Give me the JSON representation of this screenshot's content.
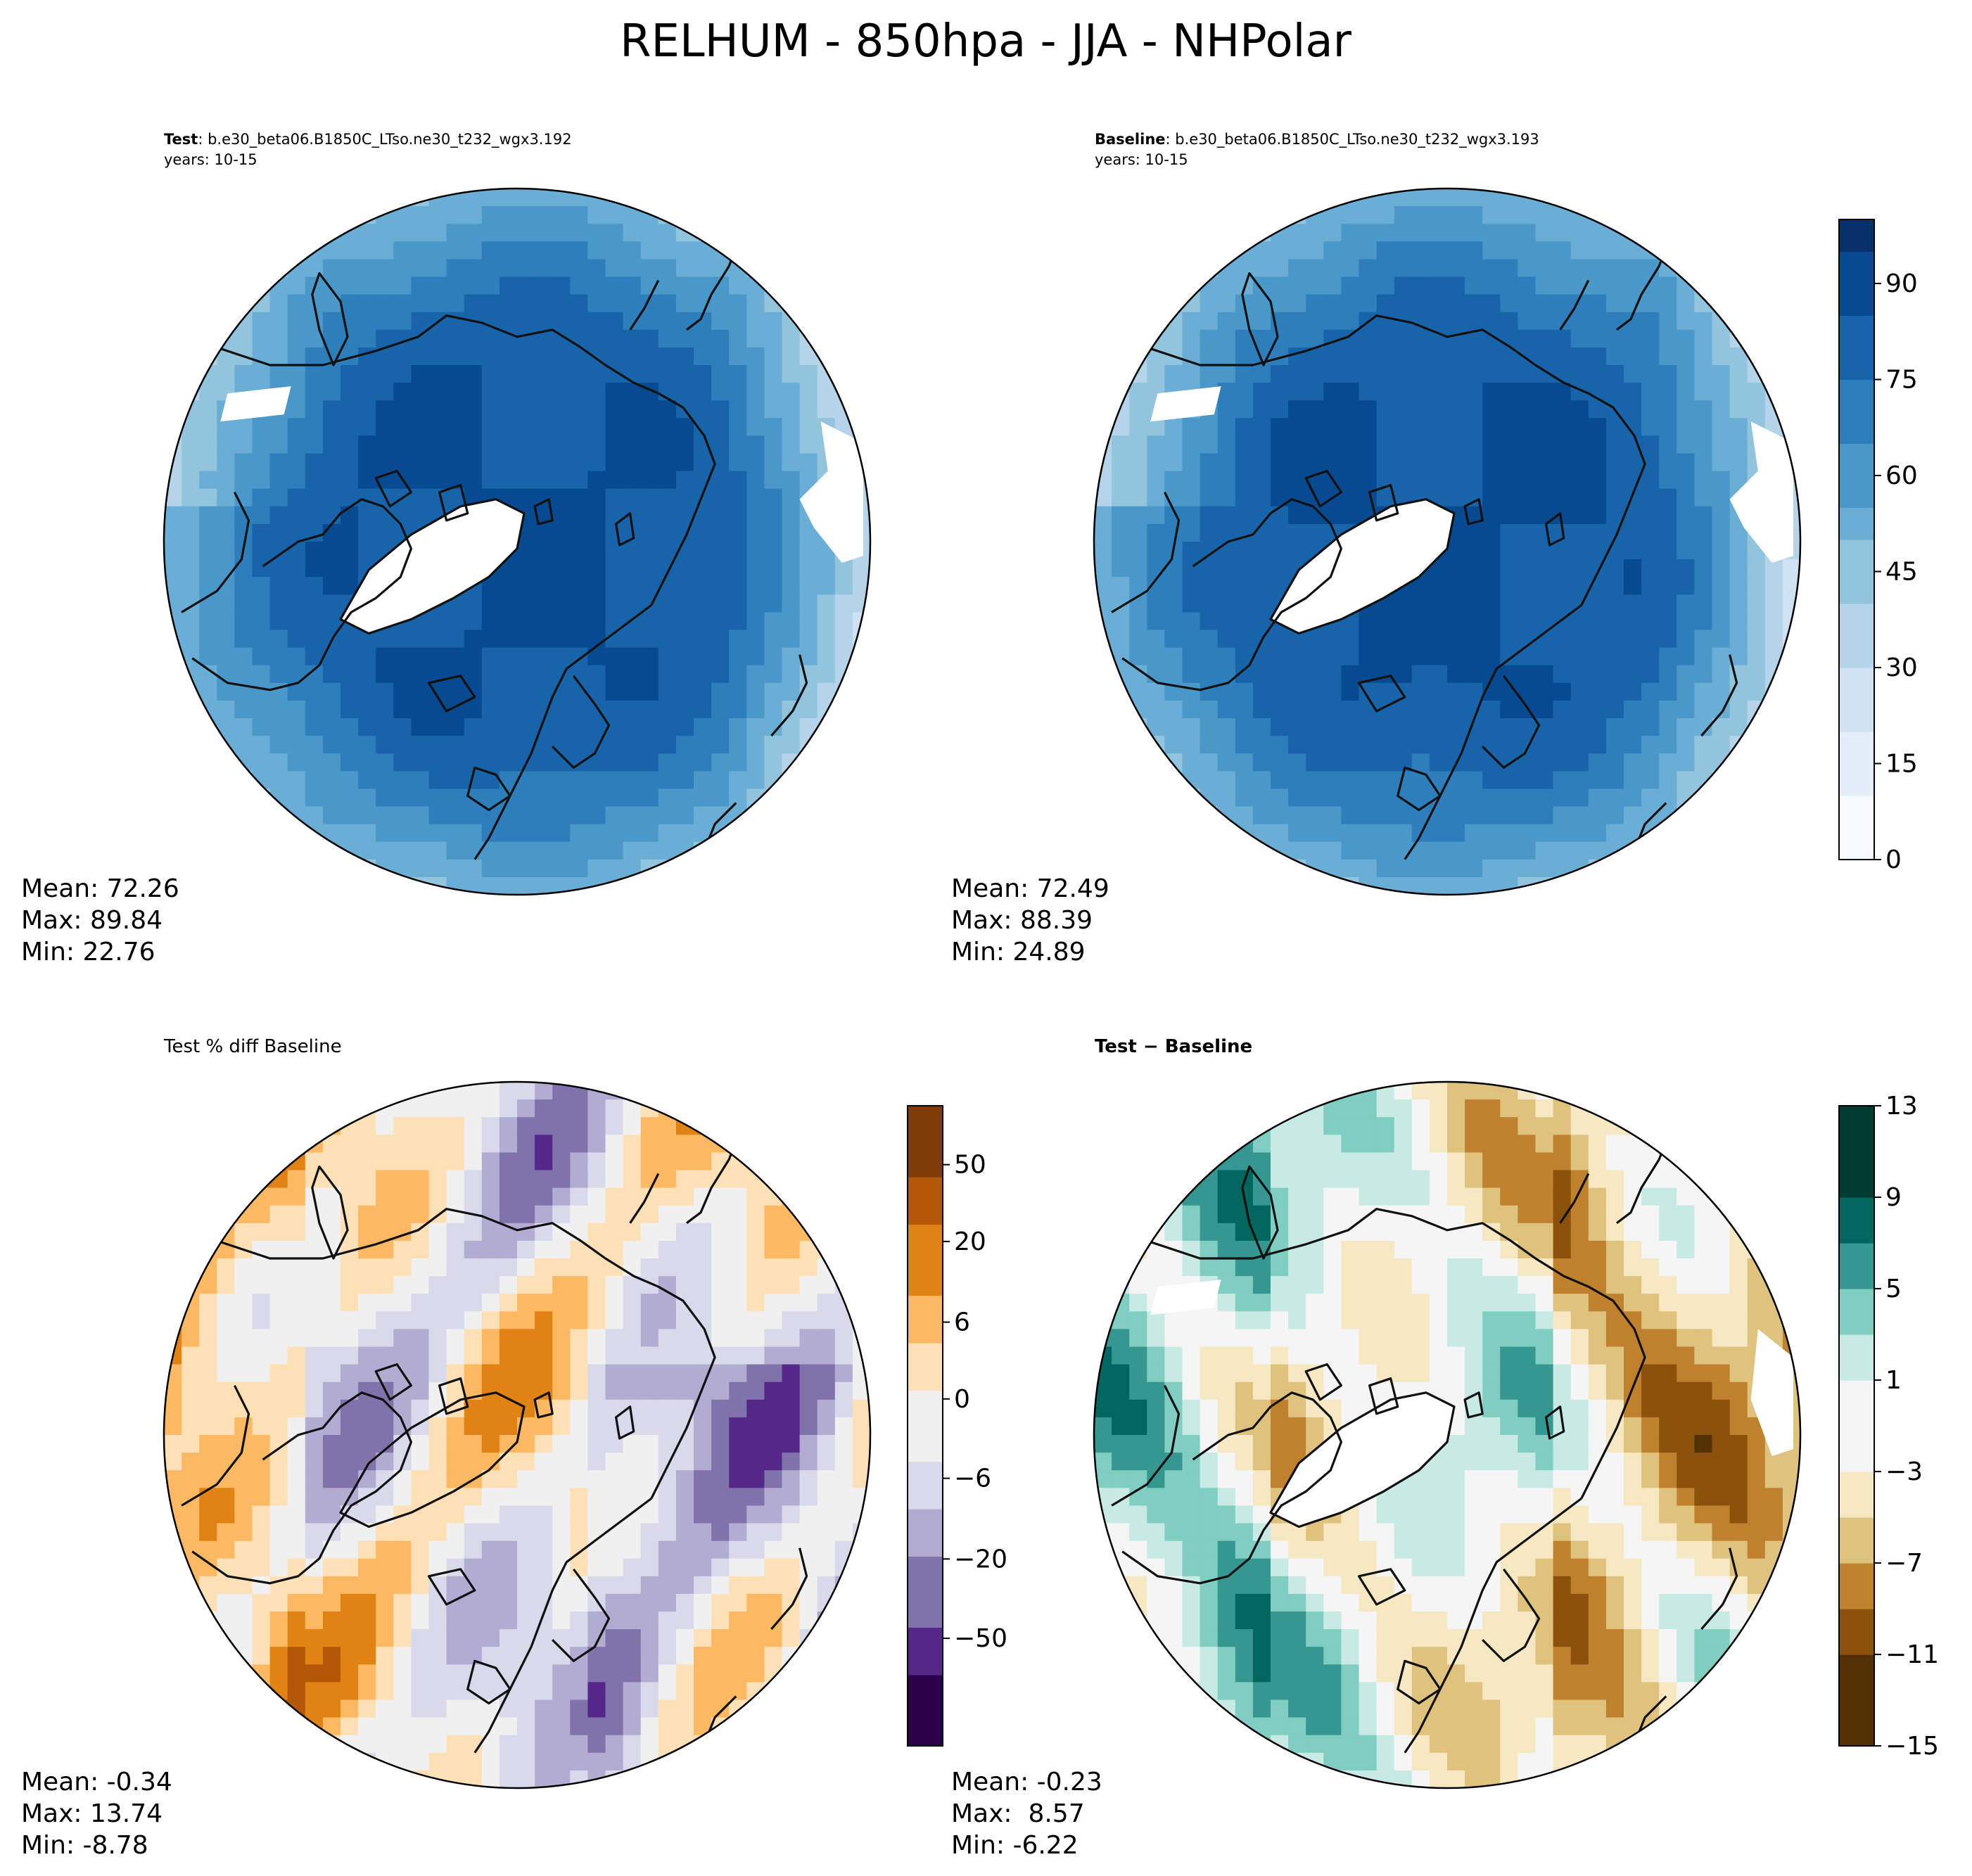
{
  "figure": {
    "title": "RELHUM - 850hpa - JJA - NHPolar"
  },
  "chart_data": [
    {
      "type": "heatmap",
      "panel": "test",
      "projection": "north-polar-stereographic",
      "title_bold": "Test",
      "title_rest": ": b.e30_beta06.B1850C_LTso.ne30_t232_wgx3.192",
      "subtitle": "years: 10-15",
      "stats": {
        "mean": "Mean: 72.26",
        "max": "Max: 89.84",
        "min": "Min: 22.76"
      },
      "field_range": [
        22.76,
        89.84
      ],
      "colorscale": "Blues",
      "colorbar_ref": "main"
    },
    {
      "type": "heatmap",
      "panel": "baseline",
      "projection": "north-polar-stereographic",
      "title_bold": "Baseline",
      "title_rest": ": b.e30_beta06.B1850C_LTso.ne30_t232_wgx3.193",
      "subtitle": "years: 10-15",
      "stats": {
        "mean": "Mean: 72.49",
        "max": "Max: 88.39",
        "min": "Min: 24.89"
      },
      "field_range": [
        24.89,
        88.39
      ],
      "colorscale": "Blues",
      "colorbar": {
        "name": "main",
        "ticks": [
          "0",
          "15",
          "30",
          "45",
          "60",
          "75",
          "90"
        ],
        "tick_values": [
          0,
          15,
          30,
          45,
          60,
          75,
          90
        ],
        "range": [
          0,
          100
        ],
        "levels": 20
      }
    },
    {
      "type": "heatmap",
      "panel": "pct-diff",
      "projection": "north-polar-stereographic",
      "title": "Test % diff Baseline",
      "stats": {
        "mean": "Mean: -0.34",
        "max": "Max: 13.74",
        "min": "Min: -8.78"
      },
      "colorscale": "PuOr",
      "colorbar": {
        "name": "pct",
        "ticks": [
          "50",
          "20",
          "6",
          "0",
          "−6",
          "−20",
          "−50"
        ],
        "levels": 27
      }
    },
    {
      "type": "heatmap",
      "panel": "difference",
      "projection": "north-polar-stereographic",
      "title": "Test − Baseline",
      "stats": {
        "mean": "Mean: -0.23",
        "max": "Max:  8.57",
        "min": "Min: -6.22"
      },
      "colorscale": "BrBG",
      "colorbar": {
        "name": "diff",
        "ticks": [
          "13",
          "9",
          "5",
          "1",
          "−3",
          "−7",
          "−11",
          "−15"
        ],
        "tick_values": [
          13,
          9,
          5,
          1,
          -3,
          -7,
          -11,
          -15
        ],
        "range": [
          -15,
          13
        ],
        "levels": 14
      }
    }
  ],
  "colors": {
    "blues": [
      "#f7fbff",
      "#e3eef9",
      "#cfe1f2",
      "#b5d4e9",
      "#93c4de",
      "#6aaed6",
      "#4a98c9",
      "#2e7ebc",
      "#1764ab",
      "#084a91",
      "#08306b"
    ],
    "puor": [
      "#2d004b",
      "#542788",
      "#8073ac",
      "#b2abd2",
      "#d8daeb",
      "#f0f0f0",
      "#fee0b6",
      "#fdb863",
      "#e08214",
      "#b35806",
      "#7f3b08"
    ],
    "brbg": [
      "#543005",
      "#8c510a",
      "#bf812d",
      "#dfc27d",
      "#f6e8c3",
      "#f5f5f5",
      "#c7eae5",
      "#80cdc1",
      "#35978f",
      "#01665e",
      "#003c30"
    ],
    "coast": "#111111",
    "land_mask": "#ffffff"
  }
}
